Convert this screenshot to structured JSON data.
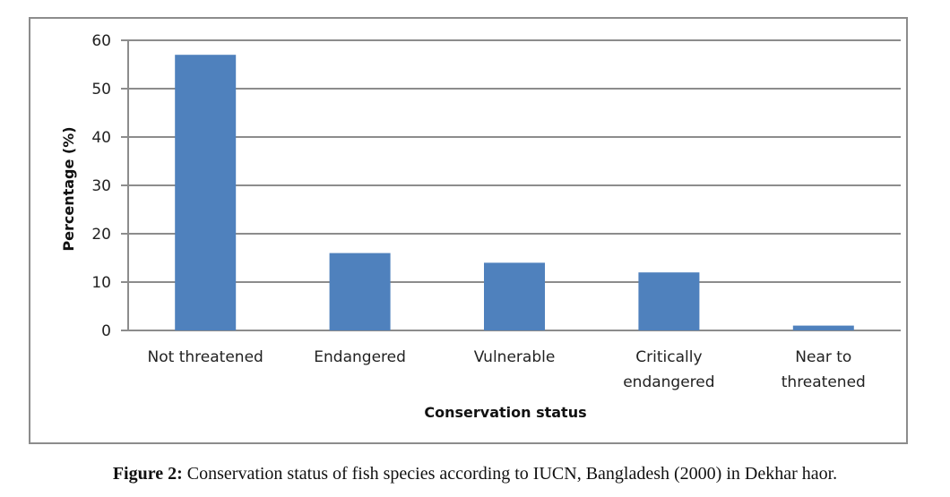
{
  "chart_data": {
    "type": "bar",
    "title": "",
    "xlabel": "Conservation status",
    "ylabel": "Percentage (%)",
    "categories": [
      [
        "Not threatened"
      ],
      [
        "Endangered"
      ],
      [
        "Vulnerable"
      ],
      [
        "Critically",
        "endangered"
      ],
      [
        "Near to",
        "threatened"
      ]
    ],
    "values": [
      57,
      16,
      14,
      12,
      1
    ],
    "ylim": [
      0,
      60
    ],
    "yticks": [
      0,
      10,
      20,
      30,
      40,
      50,
      60
    ],
    "grid": true,
    "legend": "none",
    "bar_color": "#4f81bd"
  },
  "caption": {
    "label": "Figure 2:",
    "text": " Conservation status of fish species according to IUCN, Bangladesh (2000) in Dekhar haor."
  }
}
